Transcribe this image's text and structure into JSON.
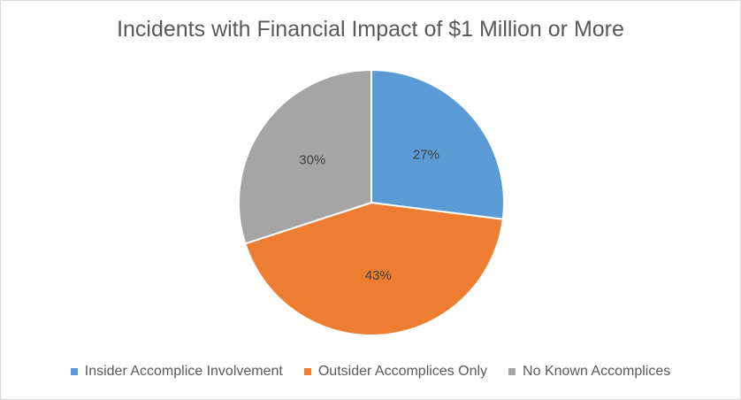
{
  "chart_data": {
    "type": "pie",
    "title": "Incidents with Financial Impact of $1 Million or More",
    "categories": [
      "Insider Accomplice Involvement",
      "Outsider Accomplices Only",
      "No Known Accomplices"
    ],
    "values": [
      27,
      43,
      30
    ],
    "data_labels": [
      "27%",
      "43%",
      "30%"
    ],
    "colors": [
      "#5b9bd5",
      "#ed7d31",
      "#a5a5a5"
    ],
    "legend_position": "bottom",
    "start_angle": "top, clockwise"
  }
}
